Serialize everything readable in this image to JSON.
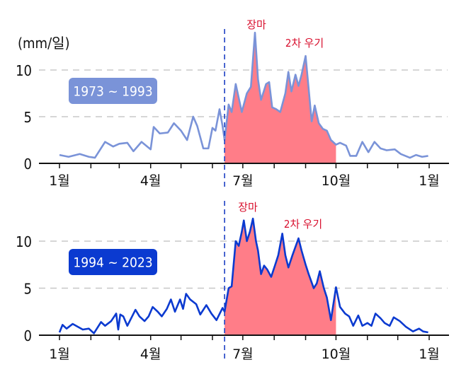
{
  "chart_data": [
    {
      "type": "line",
      "unit_label": "(mm/일)",
      "period_label": "1973 ~ 1993",
      "x_tick_labels": [
        "1월",
        "4월",
        "7월",
        "10월",
        "1월"
      ],
      "y_ticks": [
        0,
        5,
        10
      ],
      "ylim": [
        0,
        14.5
      ],
      "grid": "horizontal dashed at 5 and 10",
      "vertical_marker": "06-13",
      "shaded_range": [
        "06-13",
        "10-01"
      ],
      "annotations": [
        "장마",
        "2차 우기"
      ],
      "colors": {
        "line": "#7a93d8",
        "fill": "#ff7d88",
        "badge": "#7a93d8",
        "annotation": "#d8102e",
        "marker": "#1c3fc4"
      },
      "x": [
        "01-01",
        "01-10",
        "01-21",
        "01-30",
        "02-05",
        "02-15",
        "02-23",
        "03-01",
        "03-09",
        "03-15",
        "03-23",
        "04-01",
        "04-04",
        "04-10",
        "04-18",
        "04-24",
        "05-01",
        "05-07",
        "05-13",
        "05-17",
        "05-23",
        "05-28",
        "06-01",
        "06-04",
        "06-08",
        "06-11",
        "06-13",
        "06-17",
        "06-20",
        "06-24",
        "06-27",
        "06-30",
        "07-05",
        "07-09",
        "07-13",
        "07-16",
        "07-19",
        "07-24",
        "07-27",
        "07-30",
        "08-03",
        "08-07",
        "08-12",
        "08-15",
        "08-18",
        "08-22",
        "08-25",
        "08-28",
        "09-01",
        "09-04",
        "09-07",
        "09-10",
        "09-14",
        "09-18",
        "09-22",
        "09-26",
        "10-01",
        "10-05",
        "10-11",
        "10-15",
        "10-21",
        "10-27",
        "11-02",
        "11-08",
        "11-14",
        "11-20",
        "11-28",
        "12-04",
        "12-13",
        "12-19",
        "12-25",
        "12-31"
      ],
      "y": [
        0.9,
        0.7,
        1.0,
        0.7,
        0.6,
        2.3,
        1.8,
        2.1,
        2.2,
        1.3,
        2.3,
        1.5,
        3.9,
        3.2,
        3.3,
        4.3,
        3.5,
        2.5,
        5.0,
        4.0,
        1.6,
        1.6,
        3.8,
        3.5,
        5.8,
        4.0,
        2.5,
        6.3,
        5.5,
        8.5,
        7.0,
        5.5,
        7.5,
        8.2,
        14.0,
        9.0,
        6.8,
        8.5,
        8.7,
        6.0,
        5.8,
        5.5,
        7.5,
        9.8,
        7.7,
        9.5,
        8.3,
        9.5,
        11.5,
        8.0,
        4.5,
        6.2,
        4.3,
        3.7,
        3.5,
        2.5,
        2.0,
        2.2,
        1.9,
        0.8,
        0.8,
        2.3,
        1.2,
        2.3,
        1.6,
        1.4,
        1.5,
        1.0,
        0.6,
        0.9,
        0.7,
        0.8
      ]
    },
    {
      "type": "line",
      "period_label": "1994 ~ 2023",
      "x_tick_labels": [
        "1월",
        "4월",
        "7월",
        "10월",
        "1월"
      ],
      "y_ticks": [
        0,
        5,
        10
      ],
      "ylim": [
        0,
        14.5
      ],
      "grid": "horizontal dashed at 5 and 10",
      "vertical_marker": "06-13",
      "shaded_range": [
        "06-13",
        "10-01"
      ],
      "annotations": [
        "장마",
        "2차 우기"
      ],
      "colors": {
        "line": "#0b3ad0",
        "fill": "#ff7d88",
        "badge": "#0b3ad0",
        "annotation": "#d8102e",
        "marker": "#1c3fc4"
      },
      "x": [
        "01-01",
        "01-04",
        "01-08",
        "01-14",
        "01-19",
        "01-24",
        "01-30",
        "02-04",
        "02-11",
        "02-15",
        "02-21",
        "02-26",
        "02-28",
        "03-02",
        "03-05",
        "03-09",
        "03-17",
        "03-21",
        "03-26",
        "03-30",
        "04-03",
        "04-08",
        "04-12",
        "04-17",
        "04-21",
        "04-25",
        "04-30",
        "05-03",
        "05-06",
        "05-10",
        "05-16",
        "05-20",
        "05-26",
        "05-31",
        "06-05",
        "06-11",
        "06-13",
        "06-17",
        "06-20",
        "06-24",
        "06-27",
        "06-30",
        "07-02",
        "07-05",
        "07-08",
        "07-11",
        "07-14",
        "07-16",
        "07-19",
        "07-22",
        "07-25",
        "07-29",
        "08-02",
        "08-05",
        "08-09",
        "08-12",
        "08-15",
        "08-19",
        "08-25",
        "08-28",
        "09-01",
        "09-04",
        "09-09",
        "09-12",
        "09-15",
        "09-19",
        "09-22",
        "09-26",
        "10-01",
        "10-05",
        "10-10",
        "10-14",
        "10-18",
        "10-23",
        "10-27",
        "11-01",
        "11-05",
        "11-09",
        "11-14",
        "11-18",
        "11-23",
        "11-27",
        "12-03",
        "12-09",
        "12-16",
        "12-22",
        "12-26",
        "12-31"
      ],
      "y": [
        0.3,
        1.1,
        0.7,
        1.2,
        0.9,
        0.6,
        0.7,
        0.2,
        1.4,
        1.0,
        1.5,
        2.3,
        0.6,
        2.2,
        2.0,
        1.0,
        2.7,
        2.0,
        1.5,
        2.0,
        3.0,
        2.5,
        2.0,
        2.8,
        3.8,
        2.5,
        3.8,
        2.8,
        4.4,
        3.8,
        3.3,
        2.2,
        3.2,
        2.3,
        1.6,
        2.9,
        2.5,
        5.0,
        5.2,
        10.0,
        9.5,
        11.0,
        12.2,
        10.0,
        11.0,
        12.4,
        10.0,
        9.0,
        6.5,
        7.4,
        7.0,
        6.2,
        7.5,
        8.5,
        10.8,
        8.5,
        7.2,
        8.5,
        10.3,
        9.0,
        7.5,
        6.5,
        5.0,
        5.5,
        6.8,
        5.0,
        4.0,
        1.6,
        5.1,
        3.0,
        2.3,
        2.0,
        1.0,
        2.1,
        1.0,
        1.3,
        1.0,
        2.3,
        1.8,
        1.3,
        1.0,
        1.9,
        1.5,
        0.9,
        0.4,
        0.7,
        0.4,
        0.3
      ]
    }
  ]
}
